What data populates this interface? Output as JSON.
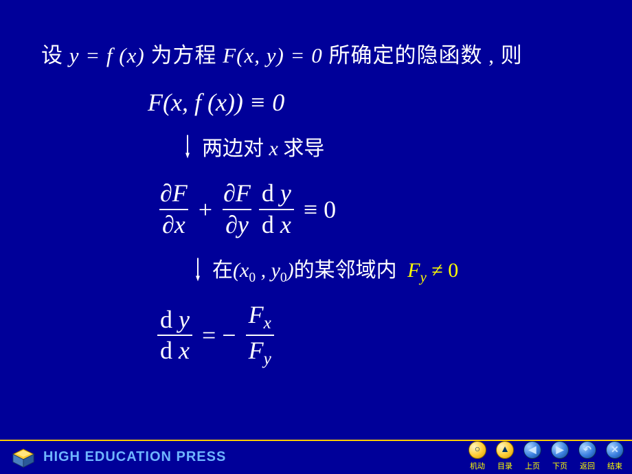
{
  "colors": {
    "background": "#000099",
    "text": "#ffffff",
    "accent": "#ffff00",
    "footer_line": "#ffcc00",
    "nav_yellow": "#ffcc33",
    "nav_blue": "#3a7fe0",
    "logo_text": "#6fb6ff"
  },
  "line1": {
    "p1": "设 ",
    "eq1": "y = f (x)",
    "p2": " 为方程 ",
    "eq2": "F(x, y) = 0",
    "p3": " 所确定的隐函数 , 则"
  },
  "identity": "F(x, f (x)) ≡ 0",
  "step1": {
    "t1": "两边对 ",
    "var": "x",
    "t2": " 求导"
  },
  "chain": {
    "num1": "∂F",
    "den1": "∂x",
    "plus": "+",
    "num2": "∂F",
    "den2": "∂y",
    "num3": "d y",
    "den3": "d x",
    "rhs": "≡ 0"
  },
  "step2": {
    "t1": "在",
    "pt": "(x₀ , y₀)",
    "t2": "的某邻域内",
    "cond": "F",
    "cond_sub": "y",
    "cond_tail": " ≠ 0"
  },
  "result": {
    "lnum": "d y",
    "lden": "d x",
    "eq": "= −",
    "rnum_base": "F",
    "rnum_sub": "x",
    "rden_base": "F",
    "rden_sub": "y"
  },
  "logo": "HIGH EDUCATION PRESS",
  "nav": [
    {
      "label": "机动",
      "icon": "○",
      "blue": false
    },
    {
      "label": "目录",
      "icon": "▲",
      "blue": false
    },
    {
      "label": "上页",
      "icon": "◀",
      "blue": true
    },
    {
      "label": "下页",
      "icon": "▶",
      "blue": true
    },
    {
      "label": "返回",
      "icon": "↶",
      "blue": true
    },
    {
      "label": "结束",
      "icon": "✕",
      "blue": true
    }
  ]
}
